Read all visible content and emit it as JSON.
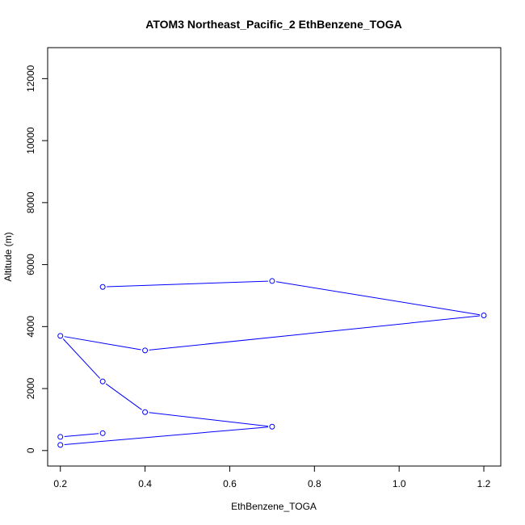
{
  "chart_data": {
    "type": "line",
    "title": "ATOM3 Northeast_Pacific_2 EthBenzene_TOGA",
    "xlabel": "EthBenzene_TOGA",
    "ylabel": "Altitude (m)",
    "xlim": [
      0.17,
      1.24
    ],
    "ylim": [
      -500,
      13000
    ],
    "x_ticks": [
      0.2,
      0.4,
      0.6,
      0.8,
      1.0,
      1.2
    ],
    "x_tick_labels": [
      "0.2",
      "0.4",
      "0.6",
      "0.8",
      "1.0",
      "1.2"
    ],
    "y_ticks": [
      0,
      2000,
      4000,
      6000,
      8000,
      10000,
      12000
    ],
    "y_tick_labels": [
      "0",
      "2000",
      "4000",
      "6000",
      "8000",
      "10000",
      "12000"
    ],
    "grid": false,
    "series": [
      {
        "color": "#0000ff",
        "marker": "open-circle",
        "points": [
          {
            "x": 0.3,
            "y": 5280
          },
          {
            "x": 0.7,
            "y": 5470
          },
          {
            "x": 1.2,
            "y": 4360
          },
          {
            "x": 0.4,
            "y": 3230
          },
          {
            "x": 0.2,
            "y": 3700
          },
          {
            "x": 0.3,
            "y": 2230
          },
          {
            "x": 0.4,
            "y": 1240
          },
          {
            "x": 0.7,
            "y": 770
          },
          {
            "x": 0.2,
            "y": 180
          },
          {
            "x": 0.2,
            "y": 440
          },
          {
            "x": 0.3,
            "y": 560
          }
        ]
      }
    ]
  }
}
